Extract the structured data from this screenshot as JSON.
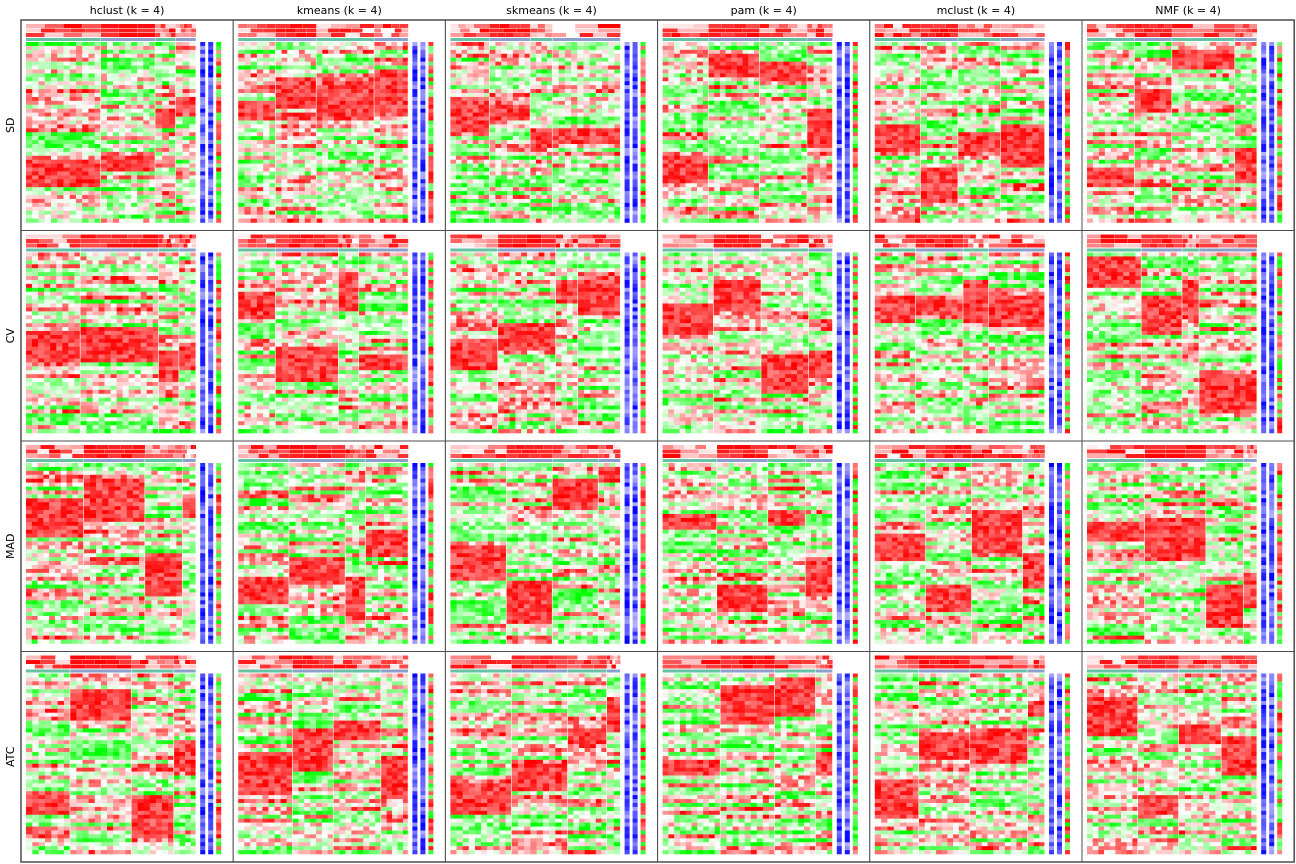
{
  "chart_data": {
    "type": "heatmap",
    "columns": [
      "hclust (k = 4)",
      "kmeans (k = 4)",
      "skmeans (k = 4)",
      "pam (k = 4)",
      "mclust (k = 4)",
      "NMF (k = 4)"
    ],
    "rows": [
      "SD",
      "CV",
      "MAD",
      "ATC"
    ],
    "k": 4,
    "colors": {
      "heat_low": "#00ff00",
      "heat_mid": "#ffffff",
      "heat_high": "#ff0000",
      "annotation_cluster": "#66c2a5",
      "annotation_alt": "#8da0cb",
      "annotation_red": "#ff0000",
      "side_low": "#0000ff",
      "side_high": "#ff0000",
      "border": "#4d4d4d"
    },
    "panels": [
      {
        "row": "SD",
        "column": "hclust (k = 4)",
        "group_fractions": [
          0.44,
          0.32,
          0.12,
          0.12
        ]
      },
      {
        "row": "SD",
        "column": "kmeans (k = 4)",
        "group_fractions": [
          0.22,
          0.24,
          0.34,
          0.2
        ]
      },
      {
        "row": "SD",
        "column": "skmeans (k = 4)",
        "group_fractions": [
          0.23,
          0.24,
          0.13,
          0.4
        ]
      },
      {
        "row": "SD",
        "column": "pam (k = 4)",
        "group_fractions": [
          0.27,
          0.3,
          0.28,
          0.15
        ]
      },
      {
        "row": "SD",
        "column": "mclust (k = 4)",
        "group_fractions": [
          0.27,
          0.22,
          0.25,
          0.26
        ]
      },
      {
        "row": "SD",
        "column": "NMF (k = 4)",
        "group_fractions": [
          0.28,
          0.22,
          0.37,
          0.13
        ]
      },
      {
        "row": "CV",
        "column": "hclust (k = 4)",
        "group_fractions": [
          0.32,
          0.46,
          0.12,
          0.1
        ]
      },
      {
        "row": "CV",
        "column": "kmeans (k = 4)",
        "group_fractions": [
          0.22,
          0.37,
          0.12,
          0.29
        ]
      },
      {
        "row": "CV",
        "column": "skmeans (k = 4)",
        "group_fractions": [
          0.28,
          0.34,
          0.13,
          0.25
        ]
      },
      {
        "row": "CV",
        "column": "pam (k = 4)",
        "group_fractions": [
          0.3,
          0.28,
          0.28,
          0.14
        ]
      },
      {
        "row": "CV",
        "column": "mclust (k = 4)",
        "group_fractions": [
          0.24,
          0.28,
          0.15,
          0.33
        ]
      },
      {
        "row": "CV",
        "column": "NMF (k = 4)",
        "group_fractions": [
          0.32,
          0.24,
          0.1,
          0.34
        ]
      },
      {
        "row": "MAD",
        "column": "hclust (k = 4)",
        "group_fractions": [
          0.34,
          0.36,
          0.22,
          0.08
        ]
      },
      {
        "row": "MAD",
        "column": "kmeans (k = 4)",
        "group_fractions": [
          0.3,
          0.33,
          0.12,
          0.25
        ]
      },
      {
        "row": "MAD",
        "column": "skmeans (k = 4)",
        "group_fractions": [
          0.33,
          0.27,
          0.27,
          0.13
        ]
      },
      {
        "row": "MAD",
        "column": "pam (k = 4)",
        "group_fractions": [
          0.32,
          0.3,
          0.22,
          0.16
        ]
      },
      {
        "row": "MAD",
        "column": "mclust (k = 4)",
        "group_fractions": [
          0.3,
          0.27,
          0.3,
          0.13
        ]
      },
      {
        "row": "MAD",
        "column": "NMF (k = 4)",
        "group_fractions": [
          0.34,
          0.36,
          0.22,
          0.08
        ]
      },
      {
        "row": "ATC",
        "column": "hclust (k = 4)",
        "group_fractions": [
          0.26,
          0.36,
          0.25,
          0.13
        ]
      },
      {
        "row": "ATC",
        "column": "kmeans (k = 4)",
        "group_fractions": [
          0.32,
          0.24,
          0.28,
          0.16
        ]
      },
      {
        "row": "ATC",
        "column": "skmeans (k = 4)",
        "group_fractions": [
          0.36,
          0.33,
          0.23,
          0.08
        ]
      },
      {
        "row": "ATC",
        "column": "pam (k = 4)",
        "group_fractions": [
          0.34,
          0.32,
          0.24,
          0.1
        ]
      },
      {
        "row": "ATC",
        "column": "mclust (k = 4)",
        "group_fractions": [
          0.26,
          0.3,
          0.34,
          0.1
        ]
      },
      {
        "row": "ATC",
        "column": "NMF (k = 4)",
        "group_fractions": [
          0.3,
          0.24,
          0.25,
          0.21
        ]
      }
    ]
  }
}
